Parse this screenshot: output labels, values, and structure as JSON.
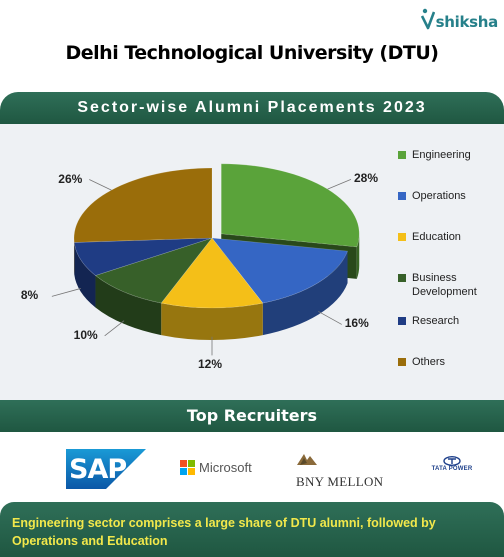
{
  "brand": {
    "name": "shiksha",
    "color": "#26808a"
  },
  "main_title": "Delhi Technological University (DTU)",
  "recruiters_heading": "Top Recruiters",
  "recruiters": [
    {
      "name": "SAP",
      "logo": "sap-logo"
    },
    {
      "name": "Microsoft",
      "logo": "microsoft-logo"
    },
    {
      "name": "BNY MELLON",
      "logo": "bny-mellon-logo"
    },
    {
      "name": "TATA POWER",
      "logo": "tata-power-logo"
    }
  ],
  "footer_note": "Engineering sector comprises a large share of DTU alumni, followed by Operations and Education",
  "colors": {
    "band": "#2a6650",
    "footer_text": "#f2e84b",
    "chart_bg": "#eef1f4"
  },
  "chart_data": {
    "type": "pie",
    "title": "Sector-wise Alumni Placements 2023",
    "style": "3d-exploded",
    "legend_position": "right",
    "categories": [
      "Engineering",
      "Operations",
      "Education",
      "Business Development",
      "Research",
      "Others"
    ],
    "values": [
      28,
      16,
      12,
      10,
      8,
      26
    ],
    "labels": [
      "28%",
      "16%",
      "12%",
      "10%",
      "8%",
      "26%"
    ],
    "colors": [
      "#5aa33a",
      "#3566c4",
      "#f4bf18",
      "#376029",
      "#1f3c84",
      "#9a6d0a"
    ]
  }
}
